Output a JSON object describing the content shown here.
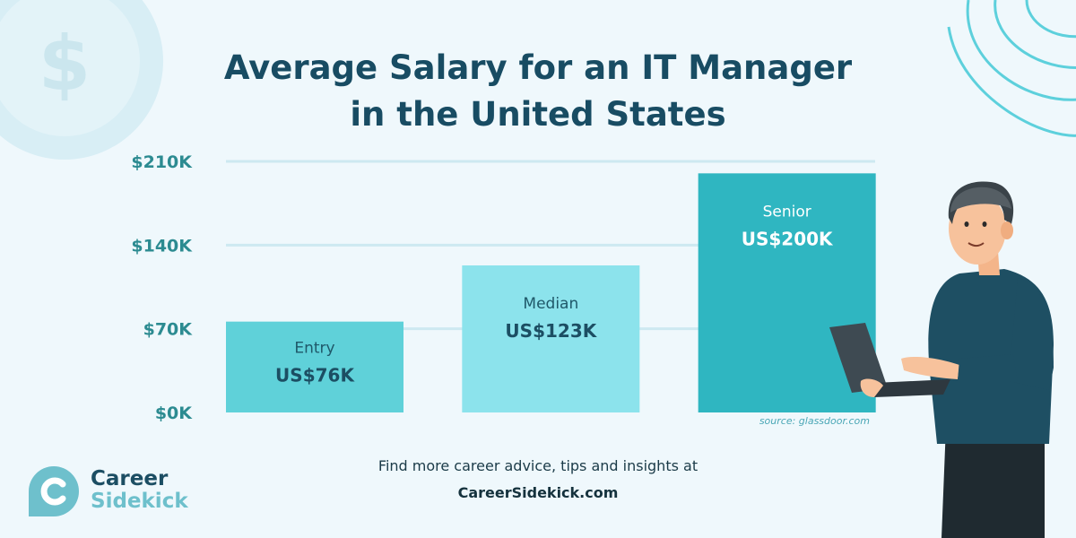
{
  "title_line1": "Average Salary for an IT Manager",
  "title_line2": "in the United States",
  "chart_data": {
    "type": "bar",
    "yticks": [
      "$0K",
      "$70K",
      "$140K",
      "$210K"
    ],
    "ytick_values": [
      0,
      70,
      140,
      210
    ],
    "ylim": [
      0,
      210
    ],
    "categories": [
      "Entry",
      "Median",
      "Senior"
    ],
    "values": [
      76,
      123,
      200
    ],
    "value_labels": [
      "US$76K",
      "US$123K",
      "US$200K"
    ],
    "unit": "thousand USD",
    "grid": true,
    "colors": [
      "#5fd1d9",
      "#8ce3ec",
      "#2fb6c1"
    ]
  },
  "source": "source: glassdoor.com",
  "footer": {
    "line": "Find more career advice, tips and insights at",
    "link": "CareerSidekick.com"
  },
  "logo": {
    "line1": "Career",
    "line2": "Sidekick"
  }
}
